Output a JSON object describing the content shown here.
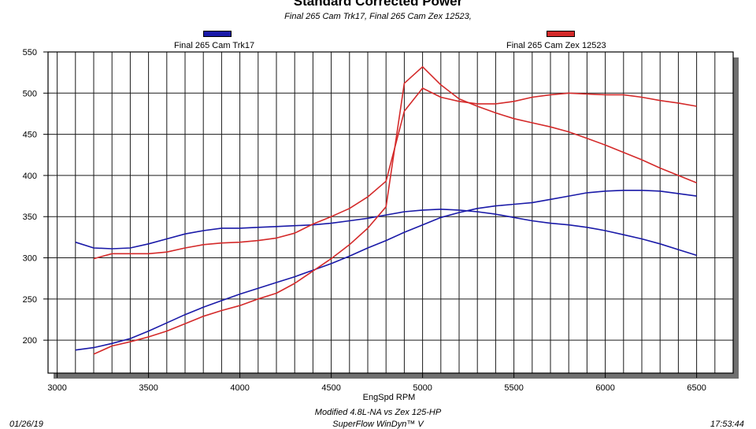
{
  "chart_data": {
    "type": "line",
    "title": "Standard Corrected Power",
    "subtitle": "Final 265 Cam Trk17, Final 265 Cam Zex 12523,",
    "xlabel": "EngSpd RPM",
    "ylabel": "",
    "xlim": [
      2950,
      6700
    ],
    "ylim": [
      160,
      550
    ],
    "xticks": [
      3000,
      3500,
      4000,
      4500,
      5000,
      5500,
      6000,
      6500
    ],
    "yticks": [
      200,
      250,
      300,
      350,
      400,
      450,
      500,
      550
    ],
    "x_grid_step": 100,
    "y_grid_step": 50,
    "grid": true,
    "legend": [
      {
        "name": "Final 265 Cam Trk17",
        "color": "#1a1aa8"
      },
      {
        "name": "Final 265 Cam Zex 12523",
        "color": "#d42a2a"
      }
    ],
    "series": [
      {
        "name": "Final 265 Cam Trk17 A",
        "color": "#1a1aa8",
        "x": [
          3100,
          3200,
          3300,
          3400,
          3500,
          3600,
          3700,
          3800,
          3900,
          4000,
          4100,
          4200,
          4300,
          4400,
          4500,
          4600,
          4700,
          4800,
          4900,
          5000,
          5100,
          5200,
          5300,
          5400,
          5500,
          5600,
          5700,
          5800,
          5900,
          6000,
          6100,
          6200,
          6300,
          6400,
          6500
        ],
        "values": [
          319,
          312,
          311,
          312,
          317,
          323,
          329,
          333,
          336,
          336,
          337,
          338,
          339,
          340,
          342,
          345,
          348,
          352,
          356,
          358,
          359,
          358,
          356,
          353,
          349,
          345,
          342,
          340,
          337,
          333,
          328,
          323,
          317,
          310,
          303
        ]
      },
      {
        "name": "Final 265 Cam Trk17 B",
        "color": "#1a1aa8",
        "x": [
          3100,
          3200,
          3300,
          3400,
          3500,
          3600,
          3700,
          3800,
          3900,
          4000,
          4100,
          4200,
          4300,
          4400,
          4500,
          4600,
          4700,
          4800,
          4900,
          5000,
          5100,
          5200,
          5300,
          5400,
          5500,
          5600,
          5700,
          5800,
          5900,
          6000,
          6100,
          6200,
          6300,
          6400,
          6500
        ],
        "values": [
          188,
          191,
          196,
          202,
          211,
          221,
          231,
          240,
          248,
          256,
          263,
          270,
          277,
          285,
          293,
          302,
          312,
          321,
          331,
          340,
          349,
          355,
          360,
          363,
          365,
          367,
          371,
          375,
          379,
          381,
          382,
          382,
          381,
          378,
          375
        ]
      },
      {
        "name": "Final 265 Cam Zex 12523 A",
        "color": "#d42a2a",
        "x": [
          3200,
          3300,
          3400,
          3500,
          3600,
          3700,
          3800,
          3900,
          4000,
          4100,
          4200,
          4300,
          4400,
          4500,
          4600,
          4700,
          4800,
          4900,
          5000,
          5100,
          5200,
          5300,
          5400,
          5500,
          5600,
          5700,
          5800,
          5900,
          6000,
          6100,
          6200,
          6300,
          6400,
          6500
        ],
        "values": [
          299,
          305,
          305,
          305,
          307,
          312,
          316,
          318,
          319,
          321,
          324,
          330,
          341,
          350,
          360,
          374,
          393,
          478,
          506,
          495,
          490,
          487,
          487,
          490,
          495,
          498,
          500,
          499,
          498,
          498,
          495,
          491,
          488,
          484
        ]
      },
      {
        "name": "Final 265 Cam Zex 12523 B",
        "color": "#d42a2a",
        "x": [
          3200,
          3300,
          3400,
          3500,
          3600,
          3700,
          3800,
          3900,
          4000,
          4100,
          4200,
          4300,
          4400,
          4500,
          4600,
          4700,
          4800,
          4900,
          5000,
          5100,
          5200,
          5300,
          5400,
          5500,
          5600,
          5700,
          5800,
          5900,
          6000,
          6100,
          6200,
          6300,
          6400,
          6500
        ],
        "values": [
          183,
          193,
          198,
          204,
          211,
          220,
          229,
          236,
          242,
          250,
          257,
          269,
          284,
          299,
          316,
          336,
          362,
          512,
          532,
          510,
          493,
          484,
          476,
          469,
          464,
          459,
          453,
          445,
          437,
          428,
          419,
          409,
          400,
          391
        ]
      }
    ]
  },
  "footer": {
    "caption": "Modified 4.8L-NA vs Zex 125-HP",
    "software": "SuperFlow WinDyn™ V",
    "date": "01/26/19",
    "time": "17:53:44"
  }
}
